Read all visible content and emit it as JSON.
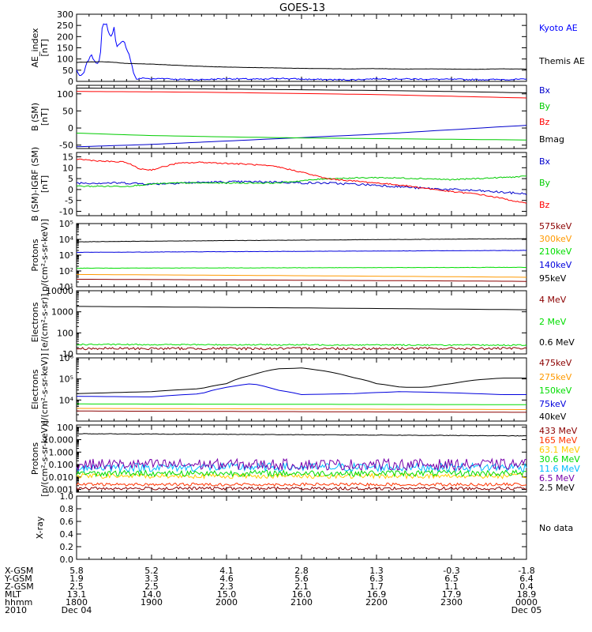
{
  "title": "GOES-13",
  "chart_data": [
    {
      "type": "line",
      "ylabel": [
        "AE_index",
        "[nT]"
      ],
      "ylim": [
        0,
        300
      ],
      "scale": "linear",
      "yticks": [
        0,
        50,
        100,
        150,
        200,
        250,
        300
      ],
      "yticklabels": [
        "0",
        "50",
        "100",
        "150",
        "200",
        "250",
        "300"
      ],
      "series": [
        {
          "name": "Kyoto AE",
          "color": "#0000ff",
          "noise": 3,
          "x": [
            0,
            3,
            6,
            8,
            12,
            14,
            17,
            19,
            20,
            22,
            23,
            24,
            26,
            28,
            30,
            32,
            34,
            36,
            38,
            40,
            42,
            44,
            46,
            48,
            50,
            55,
            60,
            70,
            80,
            100,
            120,
            140,
            150,
            160,
            180,
            200,
            220,
            240,
            280,
            320,
            360
          ],
          "y": [
            50,
            20,
            40,
            80,
            120,
            90,
            80,
            110,
            230,
            260,
            250,
            255,
            210,
            200,
            240,
            150,
            170,
            175,
            180,
            140,
            120,
            80,
            30,
            10,
            12,
            15,
            10,
            14,
            9,
            8,
            12,
            10,
            9,
            14,
            10,
            8,
            7,
            12,
            10,
            8,
            9
          ]
        },
        {
          "name": "Themis AE",
          "color": "#000000",
          "noise": 0.5,
          "x": [
            0,
            20,
            30,
            40,
            60,
            80,
            100,
            120,
            140,
            160,
            180,
            200,
            220,
            240,
            260,
            280,
            300,
            320,
            340,
            360
          ],
          "y": [
            85,
            88,
            85,
            80,
            77,
            72,
            67,
            64,
            62,
            60,
            58,
            57,
            56,
            57,
            55,
            56,
            55,
            54,
            56,
            55
          ]
        }
      ]
    },
    {
      "type": "line",
      "ylabel": [
        "B (SM)",
        "[nT]"
      ],
      "ylim": [
        -60,
        125
      ],
      "scale": "linear",
      "yticks": [
        -50,
        0,
        50,
        100
      ],
      "yticklabels": [
        "-50",
        "0",
        "50",
        "100"
      ],
      "series": [
        {
          "name": "Bx",
          "color": "#0000cc",
          "noise": 0,
          "x": [
            0,
            60,
            120,
            180,
            240,
            300,
            360
          ],
          "y": [
            -55,
            -48,
            -38,
            -28,
            -18,
            -5,
            8
          ]
        },
        {
          "name": "By",
          "color": "#00cc00",
          "noise": 0,
          "x": [
            0,
            60,
            120,
            180,
            240,
            300,
            360
          ],
          "y": [
            -15,
            -22,
            -26,
            -29,
            -31,
            -33,
            -35
          ]
        },
        {
          "name": "Bz",
          "color": "#ff0000",
          "noise": 0,
          "x": [
            0,
            60,
            120,
            180,
            240,
            300,
            360
          ],
          "y": [
            107,
            106,
            104,
            101,
            98,
            93,
            88
          ]
        },
        {
          "name": "Bmag",
          "color": "#000000",
          "noise": 0,
          "x": [
            0,
            60,
            120,
            180,
            240,
            300,
            360
          ],
          "y": [
            117,
            116,
            114,
            112,
            110,
            107,
            103
          ]
        }
      ]
    },
    {
      "type": "line",
      "ylabel": [
        "B (SM)-IGRF (SM)",
        "[nT]"
      ],
      "ylim": [
        -12,
        17
      ],
      "scale": "linear",
      "yticks": [
        -10,
        -5,
        0,
        5,
        10,
        15
      ],
      "yticklabels": [
        "-10",
        "-5",
        "0",
        "5",
        "10",
        "15"
      ],
      "series": [
        {
          "name": "Bx",
          "color": "#0000cc",
          "noise": 0.5,
          "x": [
            0,
            40,
            60,
            80,
            120,
            160,
            180,
            200,
            240,
            280,
            320,
            360
          ],
          "y": [
            3,
            3,
            2.5,
            3,
            3.5,
            3.5,
            3,
            3,
            2,
            0.5,
            -0.5,
            -2
          ]
        },
        {
          "name": "By",
          "color": "#00cc00",
          "noise": 0.3,
          "x": [
            0,
            40,
            60,
            80,
            120,
            160,
            200,
            240,
            280,
            300,
            320,
            360
          ],
          "y": [
            1.5,
            1.5,
            2.5,
            3,
            3,
            3,
            5,
            5.5,
            5,
            4.5,
            5,
            6
          ]
        },
        {
          "name": "Bz",
          "color": "#ff0000",
          "noise": 0.3,
          "x": [
            0,
            20,
            40,
            50,
            60,
            80,
            100,
            120,
            140,
            160,
            180,
            200,
            220,
            240,
            260,
            280,
            300,
            320,
            340,
            360
          ],
          "y": [
            14,
            13,
            12.5,
            9.5,
            9,
            12,
            12.5,
            12,
            11.5,
            10.5,
            8,
            5,
            4,
            3,
            2,
            0.5,
            -1,
            -2,
            -4,
            -6.5
          ]
        }
      ]
    },
    {
      "type": "line",
      "ylabel": [
        "Protons",
        "p/(cm²-s-sr-keV)]"
      ],
      "ylim": [
        10,
        100000
      ],
      "scale": "log",
      "yticks": [
        10,
        100,
        1000,
        10000,
        100000
      ],
      "yticklabels": [
        "10¹",
        "10²",
        "10³",
        "10⁴",
        "10⁵"
      ],
      "series": [
        {
          "name": "575keV",
          "color": "#8b0000",
          "noise": 0,
          "x": [
            0,
            360
          ],
          "y": [
            30,
            22
          ]
        },
        {
          "name": "300keV",
          "color": "#ff9900",
          "noise": 0,
          "x": [
            0,
            360
          ],
          "y": [
            60,
            40
          ]
        },
        {
          "name": "210keV",
          "color": "#00dd00",
          "noise": 0.01,
          "x": [
            0,
            360
          ],
          "y": [
            150,
            170
          ]
        },
        {
          "name": "140keV",
          "color": "#0000dd",
          "noise": 0.01,
          "x": [
            0,
            360
          ],
          "y": [
            1500,
            2000
          ]
        },
        {
          "name": "95keV",
          "color": "#000000",
          "noise": 0.01,
          "x": [
            0,
            360
          ],
          "y": [
            7000,
            11000
          ]
        }
      ]
    },
    {
      "type": "line",
      "ylabel": [
        "Electrons",
        "[e/(cm²-s-sr)]"
      ],
      "ylim": [
        10,
        10000
      ],
      "scale": "log",
      "yticks": [
        10,
        100,
        1000,
        10000
      ],
      "yticklabels": [
        "10",
        "100",
        "1000",
        "10000"
      ],
      "series": [
        {
          "name": "4 MeV",
          "color": "#8b0000",
          "noise": 0.06,
          "x": [
            0,
            360
          ],
          "y": [
            18,
            18
          ]
        },
        {
          "name": "2 MeV",
          "color": "#00dd00",
          "noise": 0.03,
          "x": [
            0,
            360
          ],
          "y": [
            28,
            26
          ]
        },
        {
          "name": "0.6 MeV",
          "color": "#000000",
          "noise": 0,
          "x": [
            0,
            360
          ],
          "y": [
            1800,
            1250
          ]
        }
      ]
    },
    {
      "type": "line",
      "ylabel": [
        "Electrons",
        "e/(cm²-s-sr-keV)]"
      ],
      "ylim": [
        1000,
        1000000
      ],
      "scale": "log",
      "yticks": [
        10000,
        100000,
        1000000
      ],
      "yticklabels": [
        "10⁴",
        "10⁵",
        "10⁶"
      ],
      "series": [
        {
          "name": "475keV",
          "color": "#8b0000",
          "noise": 0,
          "x": [
            0,
            360
          ],
          "y": [
            3000,
            2600
          ]
        },
        {
          "name": "275keV",
          "color": "#ff9900",
          "noise": 0,
          "x": [
            0,
            360
          ],
          "y": [
            4000,
            3500
          ]
        },
        {
          "name": "150keV",
          "color": "#00dd00",
          "noise": 0,
          "x": [
            0,
            360
          ],
          "y": [
            6500,
            6000
          ]
        },
        {
          "name": "75keV",
          "color": "#0000dd",
          "noise": 0,
          "x": [
            0,
            60,
            100,
            120,
            140,
            160,
            180,
            220,
            260,
            300,
            340,
            360
          ],
          "y": [
            15000,
            14000,
            20000,
            40000,
            60000,
            30000,
            18000,
            20000,
            25000,
            22000,
            18000,
            18000
          ]
        },
        {
          "name": "40keV",
          "color": "#000000",
          "noise": 0,
          "x": [
            0,
            60,
            100,
            120,
            140,
            160,
            180,
            200,
            220,
            240,
            260,
            280,
            300,
            320,
            340,
            360
          ],
          "y": [
            20000,
            25000,
            35000,
            60000,
            150000,
            300000,
            330000,
            230000,
            120000,
            60000,
            40000,
            40000,
            60000,
            90000,
            110000,
            110000
          ]
        }
      ]
    },
    {
      "type": "line",
      "ylabel": [
        "Protons",
        "[p/(cm²-s-sr-keV)]"
      ],
      "ylim": [
        0.0006,
        150
      ],
      "scale": "log",
      "yticks": [
        0.001,
        0.01,
        0.1,
        1,
        10,
        100
      ],
      "yticklabels": [
        "0.001",
        "0.010",
        "0.100",
        "1.000",
        "10.000",
        "100"
      ],
      "series": [
        {
          "name": "433 MeV",
          "color": "#8b0000",
          "noise": 0.12,
          "x": [
            0,
            360
          ],
          "y": [
            0.0012,
            0.0012
          ]
        },
        {
          "name": "165 MeV",
          "color": "#ff3300",
          "noise": 0.12,
          "x": [
            0,
            360
          ],
          "y": [
            0.0025,
            0.0025
          ]
        },
        {
          "name": "63.1 MeV",
          "color": "#ffcc00",
          "noise": 0.2,
          "x": [
            0,
            360
          ],
          "y": [
            0.012,
            0.012
          ]
        },
        {
          "name": "30.6 MeV",
          "color": "#00dd00",
          "noise": 0.25,
          "x": [
            0,
            360
          ],
          "y": [
            0.02,
            0.02
          ]
        },
        {
          "name": "11.6 MeV",
          "color": "#00bbff",
          "noise": 0.35,
          "x": [
            0,
            360
          ],
          "y": [
            0.06,
            0.06
          ]
        },
        {
          "name": "6.5 MeV",
          "color": "#7700aa",
          "noise": 0.45,
          "x": [
            0,
            360
          ],
          "y": [
            0.1,
            0.1
          ]
        },
        {
          "name": "2.5 MeV",
          "color": "#000000",
          "noise": 0.02,
          "x": [
            0,
            360
          ],
          "y": [
            30,
            20
          ]
        }
      ]
    },
    {
      "type": "line",
      "ylabel": [
        "X-ray"
      ],
      "ylim": [
        0,
        1
      ],
      "scale": "linear",
      "yticks": [
        0,
        0.2,
        0.4,
        0.6,
        0.8,
        1.0
      ],
      "yticklabels": [
        "0.0",
        "0.2",
        "0.4",
        "0.6",
        "0.8",
        "1.0"
      ],
      "series": [],
      "note": "No data"
    }
  ],
  "xaxis": {
    "xlim": [
      0,
      360
    ],
    "major_ticks": [
      0,
      60,
      120,
      180,
      240,
      300,
      360
    ],
    "ephemeris": [
      {
        "label": "X-GSM",
        "values": [
          "5.8",
          "5.2",
          "4.1",
          "2.8",
          "1.3",
          "-0.3",
          "-1.8"
        ]
      },
      {
        "label": "Y-GSM",
        "values": [
          "1.9",
          "3.3",
          "4.6",
          "5.6",
          "6.3",
          "6.5",
          "6.4"
        ]
      },
      {
        "label": "Z-GSM",
        "values": [
          "2.5",
          "2.5",
          "2.3",
          "2.1",
          "1.7",
          "1.1",
          "0.4"
        ]
      },
      {
        "label": "MLT",
        "values": [
          "13.1",
          "14.0",
          "15.0",
          "16.0",
          "16.9",
          "17.9",
          "18.9"
        ]
      },
      {
        "label": "hhmm",
        "values": [
          "1800",
          "1900",
          "2000",
          "2100",
          "2200",
          "2300",
          "0000"
        ]
      },
      {
        "label": "2010",
        "values": [
          "Dec 04",
          "",
          "",
          "",
          "",
          "",
          "Dec 05"
        ]
      }
    ]
  }
}
